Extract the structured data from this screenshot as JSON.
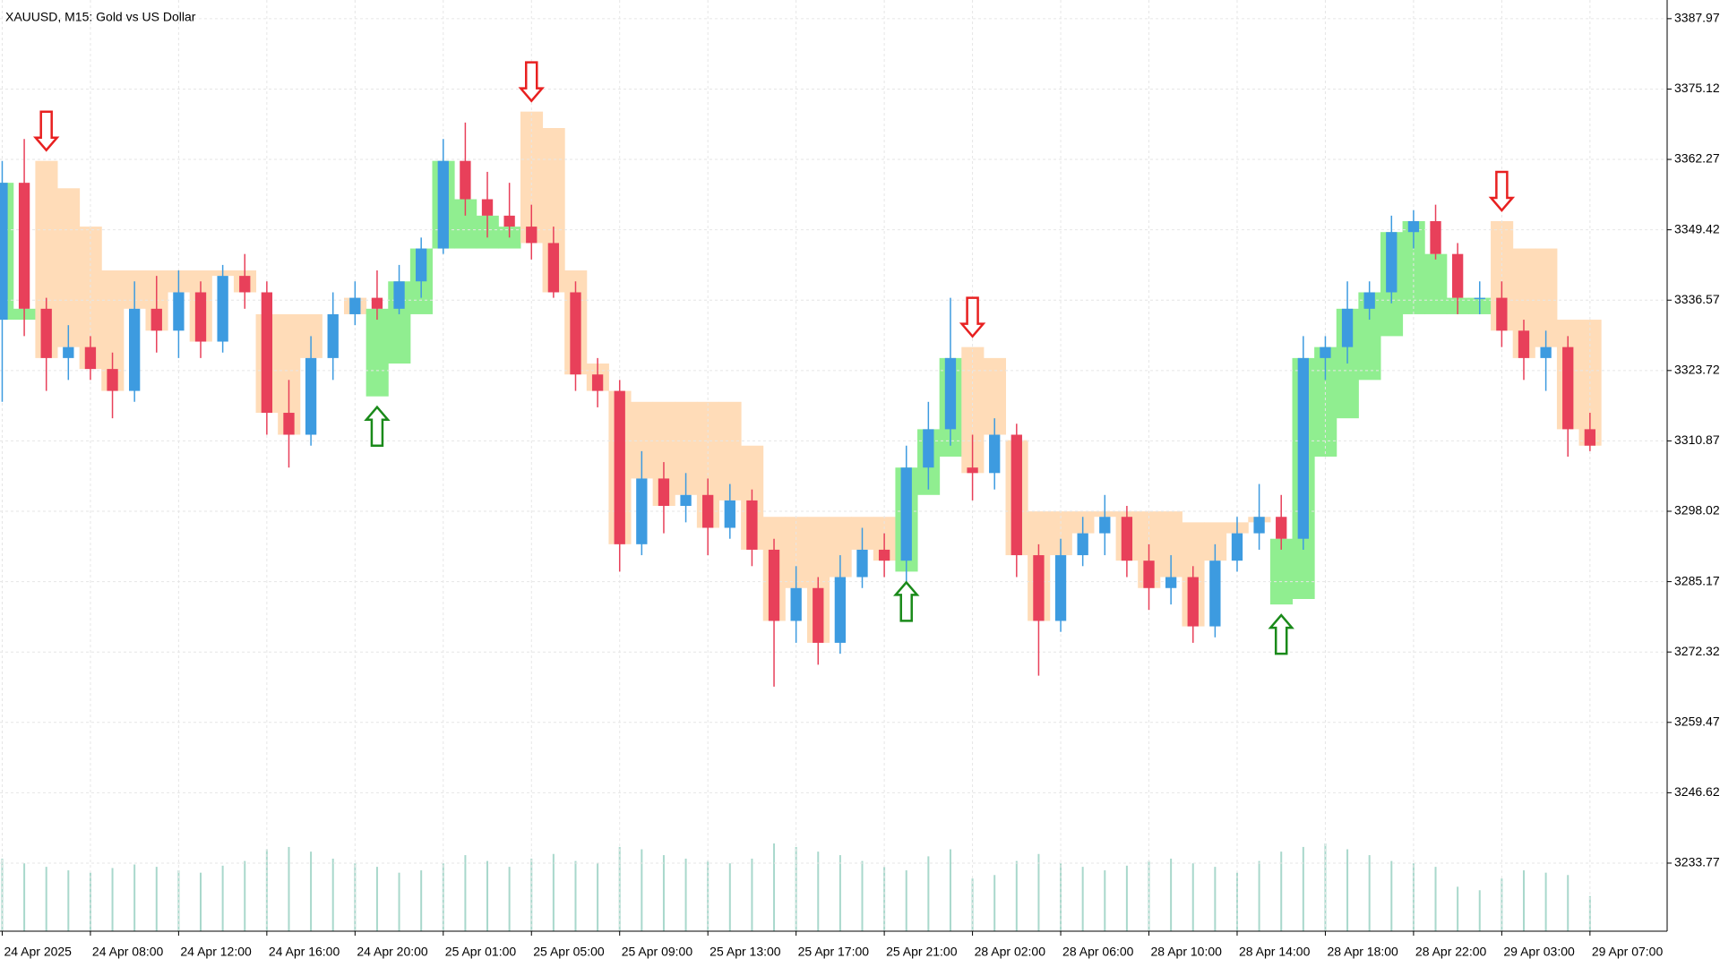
{
  "chart_data": {
    "type": "candlestick",
    "title": "XAUUSD, M15:  Gold vs US Dollar",
    "x": [
      0,
      1,
      2,
      3,
      4,
      5,
      6,
      7,
      8,
      9,
      10,
      11,
      12,
      13,
      14,
      15,
      16,
      17,
      18,
      19,
      20,
      21,
      22,
      23,
      24,
      25,
      26,
      27,
      28,
      29,
      30,
      31,
      32,
      33,
      34,
      35,
      36,
      37,
      38,
      39,
      40,
      41,
      42,
      43,
      44,
      45,
      46,
      47,
      48,
      49,
      50,
      51,
      52,
      53,
      54,
      55,
      56,
      57,
      58,
      59,
      60,
      61,
      62,
      63,
      64,
      65,
      66,
      67,
      68,
      69,
      70,
      71,
      72
    ],
    "open": [
      3333,
      3358,
      3335,
      3326,
      3328,
      3324,
      3320,
      3335,
      3331,
      3338,
      3329,
      3341,
      3338,
      3316,
      3312,
      3326,
      3334,
      3337,
      3335,
      3340,
      3346,
      3362,
      3355,
      3352,
      3350,
      3347,
      3338,
      3323,
      3320,
      3292,
      3304,
      3299,
      3301,
      3295,
      3300,
      3291,
      3278,
      3284,
      3274,
      3286,
      3291,
      3289,
      3306,
      3313,
      3306,
      3305,
      3312,
      3290,
      3278,
      3290,
      3294,
      3297,
      3289,
      3284,
      3286,
      3277,
      3289,
      3294,
      3297,
      3293,
      3326,
      3328,
      3335,
      3338,
      3349,
      3351,
      3345,
      3337,
      3337,
      3331,
      3326,
      3328,
      3313
    ],
    "high": [
      3362,
      3366,
      3337,
      3332,
      3330,
      3327,
      3340,
      3341,
      3342,
      3340,
      3343,
      3345,
      3340,
      3322,
      3330,
      3338,
      3340,
      3342,
      3343,
      3348,
      3366,
      3369,
      3360,
      3358,
      3354,
      3350,
      3340,
      3326,
      3322,
      3309,
      3307,
      3305,
      3304,
      3303,
      3302,
      3293,
      3288,
      3286,
      3290,
      3295,
      3294,
      3310,
      3318,
      3337,
      3312,
      3315,
      3314,
      3292,
      3293,
      3297,
      3301,
      3299,
      3292,
      3290,
      3288,
      3292,
      3297,
      3303,
      3301,
      3330,
      3330,
      3340,
      3340,
      3352,
      3353,
      3354,
      3347,
      3340,
      3340,
      3333,
      3331,
      3330,
      3316
    ],
    "low": [
      3318,
      3330,
      3320,
      3322,
      3322,
      3315,
      3318,
      3327,
      3326,
      3326,
      3327,
      3335,
      3312,
      3306,
      3310,
      3322,
      3332,
      3333,
      3334,
      3337,
      3345,
      3352,
      3348,
      3348,
      3344,
      3337,
      3320,
      3317,
      3287,
      3290,
      3294,
      3296,
      3290,
      3293,
      3288,
      3266,
      3274,
      3270,
      3272,
      3284,
      3286,
      3285,
      3302,
      3310,
      3300,
      3302,
      3286,
      3268,
      3276,
      3288,
      3290,
      3286,
      3280,
      3281,
      3274,
      3275,
      3287,
      3291,
      3291,
      3291,
      3322,
      3325,
      3333,
      3336,
      3346,
      3344,
      3334,
      3334,
      3328,
      3322,
      3320,
      3308,
      3309
    ],
    "close": [
      3358,
      3335,
      3326,
      3328,
      3324,
      3320,
      3335,
      3331,
      3338,
      3329,
      3341,
      3338,
      3316,
      3312,
      3326,
      3334,
      3337,
      3335,
      3340,
      3346,
      3362,
      3355,
      3352,
      3350,
      3347,
      3338,
      3323,
      3320,
      3292,
      3304,
      3299,
      3301,
      3295,
      3300,
      3291,
      3278,
      3284,
      3274,
      3286,
      3291,
      3289,
      3306,
      3313,
      3326,
      3305,
      3312,
      3290,
      3278,
      3290,
      3294,
      3297,
      3289,
      3284,
      3286,
      3277,
      3289,
      3294,
      3297,
      3293,
      3326,
      3328,
      3335,
      3338,
      3349,
      3351,
      3345,
      3337,
      3337,
      3331,
      3326,
      3328,
      3313,
      3310
    ],
    "stop": [
      3333,
      3333,
      3362,
      3357,
      3350,
      3342,
      3342,
      3342,
      3342,
      3342,
      3342,
      3342,
      3334,
      3334,
      3334,
      3334,
      3334,
      3319,
      3325,
      3334,
      3346,
      3346,
      3346,
      3346,
      3371,
      3368,
      3342,
      3325,
      3320,
      3318,
      3318,
      3318,
      3318,
      3318,
      3310,
      3297,
      3297,
      3297,
      3297,
      3297,
      3297,
      3287,
      3301,
      3308,
      3328,
      3326,
      3311,
      3298,
      3298,
      3298,
      3298,
      3298,
      3298,
      3298,
      3296,
      3296,
      3296,
      3296,
      3281,
      3282,
      3308,
      3315,
      3322,
      3330,
      3334,
      3334,
      3334,
      3334,
      3351,
      3346,
      3346,
      3333,
      3333
    ],
    "volume": [
      62,
      58,
      55,
      52,
      50,
      54,
      57,
      55,
      52,
      50,
      56,
      60,
      70,
      72,
      68,
      62,
      58,
      55,
      50,
      52,
      58,
      65,
      60,
      55,
      62,
      66,
      60,
      58,
      72,
      70,
      65,
      62,
      60,
      58,
      62,
      75,
      72,
      68,
      65,
      60,
      55,
      52,
      64,
      70,
      45,
      48,
      60,
      66,
      58,
      55,
      52,
      56,
      60,
      62,
      58,
      55,
      50,
      60,
      68,
      72,
      75,
      70,
      65,
      60,
      58,
      55,
      38,
      35,
      45,
      52,
      50,
      48,
      30
    ],
    "signals": [
      {
        "x": 2,
        "type": "sell"
      },
      {
        "x": 17,
        "type": "buy"
      },
      {
        "x": 24,
        "type": "sell"
      },
      {
        "x": 41,
        "type": "buy"
      },
      {
        "x": 44,
        "type": "sell"
      },
      {
        "x": 58,
        "type": "buy"
      },
      {
        "x": 68,
        "type": "sell"
      }
    ],
    "colors": {
      "up": "#3d9be0",
      "down": "#e8405a",
      "band_up": "#90ee90",
      "band_down": "#ffdcb8",
      "volume": "#a9d8cc",
      "buy": "#1a8a1a",
      "sell": "#e82020"
    },
    "xlim": [
      -0.1,
      75.5
    ],
    "xticks": [
      {
        "value": 0,
        "label": "24 Apr 2025"
      },
      {
        "value": 4,
        "label": "24 Apr 08:00"
      },
      {
        "value": 8,
        "label": "24 Apr 12:00"
      },
      {
        "value": 12,
        "label": "24 Apr 16:00"
      },
      {
        "value": 16,
        "label": "24 Apr 20:00"
      },
      {
        "value": 20,
        "label": "25 Apr 01:00"
      },
      {
        "value": 24,
        "label": "25 Apr 05:00"
      },
      {
        "value": 28,
        "label": "25 Apr 09:00"
      },
      {
        "value": 32,
        "label": "25 Apr 13:00"
      },
      {
        "value": 36,
        "label": "25 Apr 17:00"
      },
      {
        "value": 40,
        "label": "25 Apr 21:00"
      },
      {
        "value": 44,
        "label": "28 Apr 02:00"
      },
      {
        "value": 48,
        "label": "28 Apr 06:00"
      },
      {
        "value": 52,
        "label": "28 Apr 10:00"
      },
      {
        "value": 56,
        "label": "28 Apr 14:00"
      },
      {
        "value": 60,
        "label": "28 Apr 18:00"
      },
      {
        "value": 64,
        "label": "28 Apr 22:00"
      },
      {
        "value": 68,
        "label": "29 Apr 03:00"
      },
      {
        "value": 72,
        "label": "29 Apr 07:00"
      }
    ],
    "ylim": [
      3221.34,
      3391.38
    ],
    "yticks": [
      3387.97,
      3375.12,
      3362.27,
      3349.42,
      3336.57,
      3323.72,
      3310.87,
      3298.02,
      3285.17,
      3272.32,
      3259.47,
      3246.62,
      3233.77
    ],
    "grid": true
  }
}
